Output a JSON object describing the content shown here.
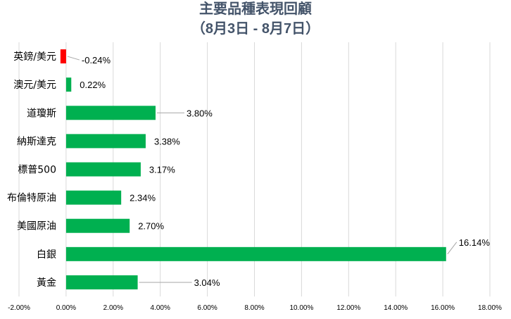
{
  "chart_data": {
    "type": "bar",
    "orientation": "horizontal",
    "title": "主要品種表現回顧",
    "subtitle": "（8月3日 - 8月7日）",
    "categories": [
      "英鎊/美元",
      "澳元/美元",
      "道瓊斯",
      "納斯達克",
      "標普500",
      "布倫特原油",
      "美國原油",
      "白銀",
      "黃金"
    ],
    "values": [
      -0.24,
      0.22,
      3.8,
      3.38,
      3.17,
      2.34,
      2.7,
      16.14,
      3.04
    ],
    "data_labels": [
      "-0.24%",
      "0.22%",
      "3.80%",
      "3.38%",
      "3.17%",
      "2.34%",
      "2.70%",
      "16.14%",
      "3.04%"
    ],
    "xlim": [
      -2,
      18
    ],
    "x_ticks": [
      -2,
      0,
      2,
      4,
      6,
      8,
      10,
      12,
      14,
      16,
      18
    ],
    "x_tick_labels": [
      "-2.00%",
      "0.00%",
      "2.00%",
      "4.00%",
      "6.00%",
      "8.00%",
      "10.00%",
      "12.00%",
      "14.00%",
      "16.00%",
      "18.00%"
    ],
    "grid": true,
    "xlabel": "",
    "ylabel": "",
    "colors": {
      "positive": "#00b050",
      "negative": "#ff0000",
      "title": "#44546a"
    }
  }
}
